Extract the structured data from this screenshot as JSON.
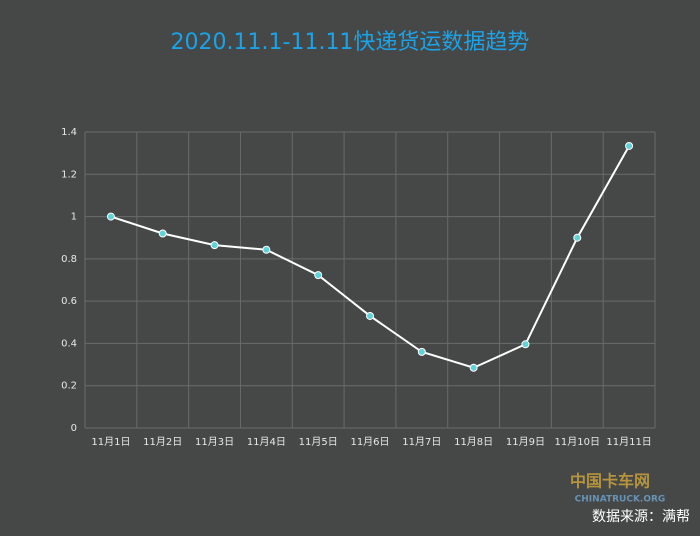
{
  "chart_data": {
    "type": "line",
    "title": "2020.11.1-11.11快递货运数据趋势",
    "categories": [
      "11月1日",
      "11月2日",
      "11月3日",
      "11月4日",
      "11月5日",
      "11月6日",
      "11月7日",
      "11月8日",
      "11月9日",
      "11月10日",
      "11月11日"
    ],
    "values": [
      1.0,
      0.92,
      0.865,
      0.843,
      0.723,
      0.53,
      0.36,
      0.285,
      0.396,
      0.9,
      1.334
    ],
    "color": "#ffffff",
    "marker_color": "#5fd3d8",
    "ylim": [
      0,
      1.4
    ],
    "yticks": [
      0,
      0.2,
      0.4,
      0.6,
      0.8,
      1,
      1.2,
      1.4
    ],
    "grid": true,
    "source": "数据来源：满帮",
    "watermark": "中国卡车网",
    "watermark_sub": "CHINATRUCK.ORG"
  }
}
